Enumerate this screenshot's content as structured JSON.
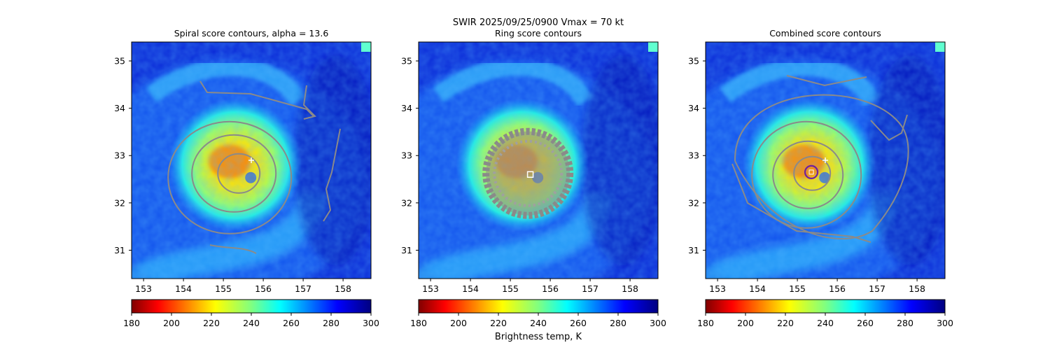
{
  "figure": {
    "suptitle": "SWIR  2025/09/25/0900    Vmax = 70 kt",
    "colorbar_label": "Brightness temp, K"
  },
  "chart_data": [
    {
      "type": "heatmap",
      "title": "Spiral score contours, alpha = 13.6",
      "xlim": [
        152.7,
        158.7
      ],
      "ylim": [
        30.4,
        35.4
      ],
      "xticks": [
        "153",
        "154",
        "155",
        "156",
        "157",
        "158"
      ],
      "yticks": [
        "31",
        "32",
        "33",
        "34",
        "35"
      ],
      "colorbar": {
        "cmap": "jet_r",
        "range": [
          180,
          300
        ],
        "ticks": [
          "180",
          "200",
          "220",
          "240",
          "260",
          "280",
          "300"
        ]
      },
      "storm_center": {
        "lon": 155.3,
        "lat": 32.8
      },
      "overlay": "spiral score contours",
      "marker": {
        "symbol": "plus",
        "lon": 155.7,
        "lat": 32.9
      }
    },
    {
      "type": "heatmap",
      "title": "Ring score contours",
      "xlim": [
        152.7,
        158.7
      ],
      "ylim": [
        30.4,
        35.4
      ],
      "xticks": [
        "153",
        "154",
        "155",
        "156",
        "157",
        "158"
      ],
      "yticks": [
        "31",
        "32",
        "33",
        "34",
        "35"
      ],
      "colorbar": {
        "cmap": "jet_r",
        "range": [
          180,
          300
        ],
        "ticks": [
          "180",
          "200",
          "220",
          "240",
          "260",
          "280",
          "300"
        ]
      },
      "storm_center": {
        "lon": 155.3,
        "lat": 32.8
      },
      "overlay": "ring score contours (dense)",
      "marker": {
        "symbol": "square",
        "lon": 155.5,
        "lat": 32.6
      }
    },
    {
      "type": "heatmap",
      "title": "Combined score contours",
      "xlim": [
        152.7,
        158.7
      ],
      "ylim": [
        30.4,
        35.4
      ],
      "xticks": [
        "153",
        "154",
        "155",
        "156",
        "157",
        "158"
      ],
      "yticks": [
        "31",
        "32",
        "33",
        "34",
        "35"
      ],
      "colorbar": {
        "cmap": "jet_r",
        "range": [
          180,
          300
        ],
        "ticks": [
          "180",
          "200",
          "220",
          "240",
          "260",
          "280",
          "300"
        ]
      },
      "storm_center": {
        "lon": 155.3,
        "lat": 32.8
      },
      "overlay": "combined score contours",
      "marker": {
        "symbol": "plus",
        "lon": 155.7,
        "lat": 32.9
      },
      "best_center": {
        "lon": 155.35,
        "lat": 32.65
      }
    }
  ]
}
